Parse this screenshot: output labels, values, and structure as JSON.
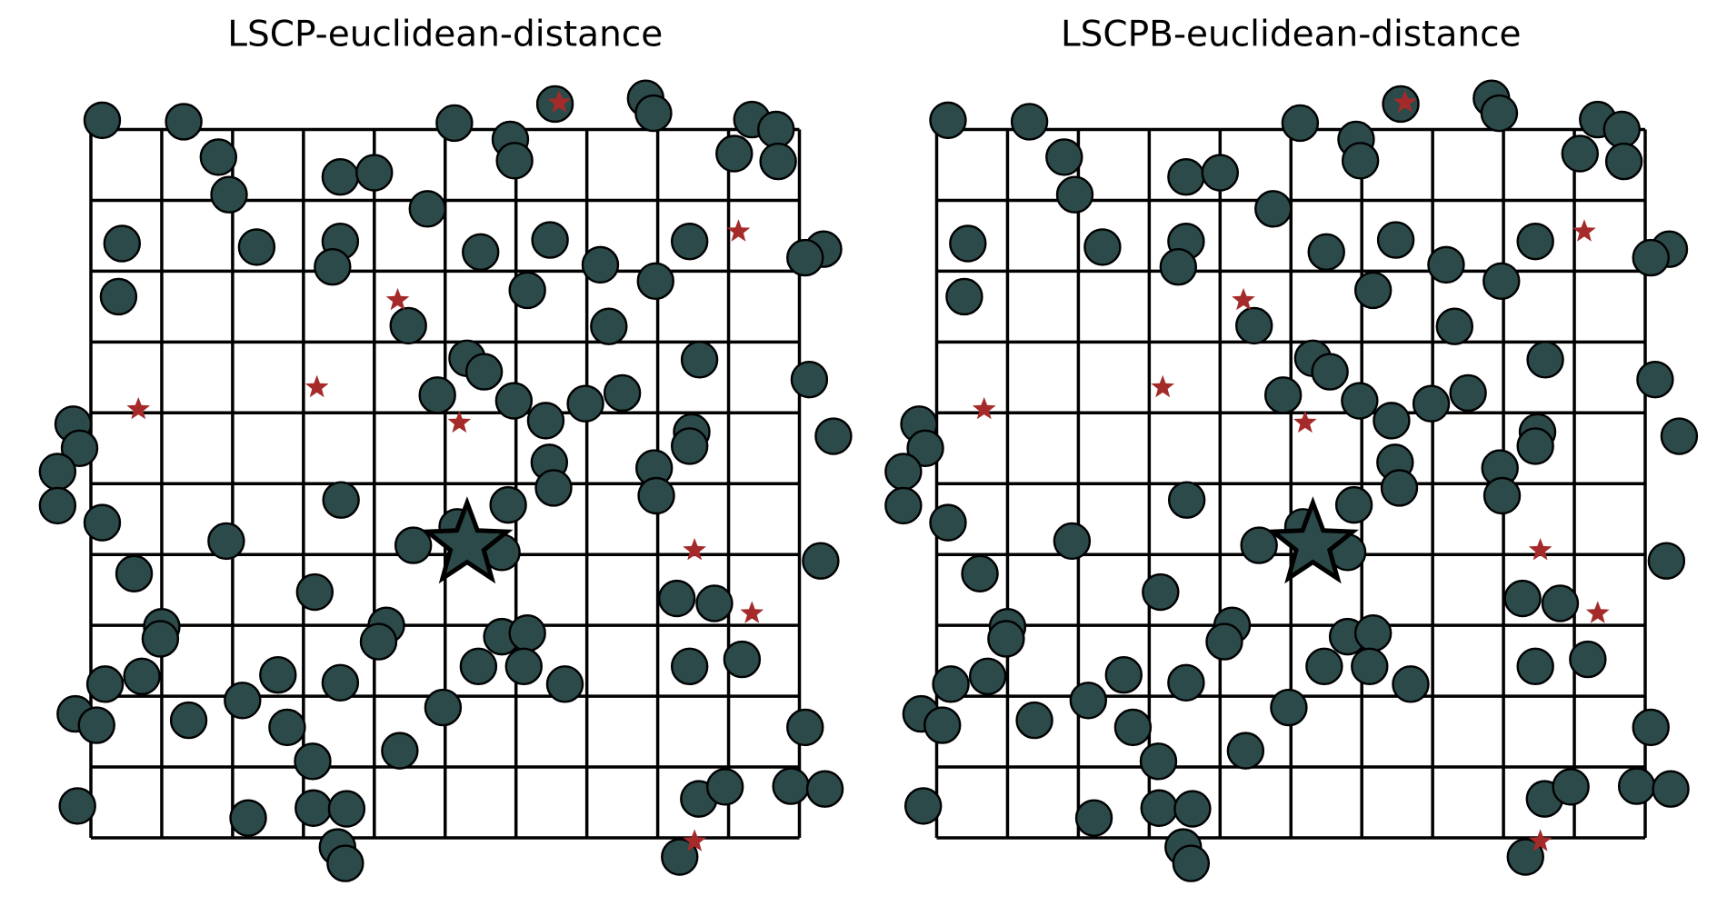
{
  "chart_data": [
    {
      "type": "scatter",
      "title": "LSCP-euclidean-distance",
      "xlim": [
        0,
        10
      ],
      "ylim": [
        0,
        10
      ],
      "xticks": [
        0,
        1,
        2,
        3,
        4,
        5,
        6,
        7,
        8,
        9,
        10
      ],
      "yticks": [
        0,
        1,
        2,
        3,
        4,
        5,
        6,
        7,
        8,
        9,
        10
      ],
      "grid": true,
      "tick_labels": false,
      "series": [
        {
          "color": "#2c4a4a",
          "marker": "circle",
          "x": [
            0.16,
            1.31,
            1.8,
            1.95,
            3.52,
            4.0,
            5.13,
            5.92,
            5.98,
            6.55,
            7.83,
            7.94,
            9.33,
            9.67,
            9.08,
            9.7,
            0.44,
            2.34,
            3.52,
            3.41,
            4.75,
            5.5,
            6.48,
            7.19,
            8.45,
            10.34,
            10.08,
            0.39,
            6.16,
            7.97,
            4.48,
            7.31,
            5.31,
            5.55,
            8.59,
            10.14,
            4.89,
            5.97,
            6.98,
            7.5,
            6.42,
            -0.25,
            -0.16,
            -0.47,
            -0.47,
            8.48,
            8.45,
            10.48,
            6.47,
            6.53,
            7.95,
            7.98,
            3.53,
            5.89,
            5.17,
            0.16,
            1.91,
            4.55,
            5.8,
            10.3,
            0.61,
            3.16,
            8.27,
            8.8,
            4.17,
            4.06,
            1.0,
            0.98,
            5.8,
            6.16,
            5.47,
            6.11,
            6.69,
            8.45,
            9.19,
            0.2,
            0.72,
            2.64,
            3.52,
            -0.22,
            0.08,
            1.38,
            2.14,
            2.77,
            4.97,
            10.08,
            3.13,
            4.36,
            -0.19,
            2.22,
            3.14,
            3.61,
            3.48,
            3.59,
            8.58,
            8.95,
            9.88,
            10.36,
            8.31
          ],
          "values": [
            10.13,
            10.11,
            9.61,
            9.08,
            9.33,
            9.39,
            10.09,
            9.86,
            9.56,
            10.36,
            10.44,
            10.23,
            10.14,
            10.0,
            9.66,
            9.55,
            8.39,
            8.34,
            8.42,
            8.06,
            8.88,
            8.27,
            8.44,
            8.09,
            8.42,
            8.31,
            8.19,
            7.64,
            7.73,
            7.86,
            7.23,
            7.22,
            6.77,
            6.58,
            6.75,
            6.47,
            6.25,
            6.17,
            6.13,
            6.28,
            5.89,
            5.84,
            5.5,
            5.17,
            4.69,
            5.73,
            5.53,
            5.67,
            5.3,
            4.94,
            5.22,
            4.83,
            4.77,
            4.7,
            4.39,
            4.45,
            4.19,
            4.13,
            4.03,
            3.91,
            3.73,
            3.47,
            3.38,
            3.31,
            3.0,
            2.77,
            2.98,
            2.81,
            2.84,
            2.89,
            2.42,
            2.42,
            2.17,
            2.42,
            2.52,
            2.17,
            2.28,
            2.3,
            2.19,
            1.75,
            1.59,
            1.66,
            1.94,
            1.56,
            1.84,
            1.56,
            1.08,
            1.23,
            0.45,
            0.28,
            0.42,
            0.41,
            -0.13,
            -0.36,
            0.55,
            0.72,
            0.73,
            0.69,
            -0.27
          ]
        },
        {
          "color": "#a52a2a",
          "marker": "star",
          "x": [
            6.61,
            9.14,
            4.33,
            3.19,
            0.67,
            5.2,
            8.52,
            9.33,
            8.52
          ],
          "values": [
            10.38,
            8.56,
            7.59,
            6.36,
            6.05,
            5.86,
            4.06,
            3.17,
            -0.05
          ]
        },
        {
          "color": "#2c4a4a",
          "marker": "big-star",
          "x": [
            5.31
          ],
          "values": [
            4.14
          ]
        }
      ]
    },
    {
      "type": "scatter",
      "title": "LSCPB-euclidean-distance",
      "xlim": [
        0,
        10
      ],
      "ylim": [
        0,
        10
      ],
      "xticks": [
        0,
        1,
        2,
        3,
        4,
        5,
        6,
        7,
        8,
        9,
        10
      ],
      "yticks": [
        0,
        1,
        2,
        3,
        4,
        5,
        6,
        7,
        8,
        9,
        10
      ],
      "grid": true,
      "tick_labels": false,
      "series": [
        {
          "color": "#2c4a4a",
          "marker": "circle",
          "x": [
            0.16,
            1.31,
            1.8,
            1.95,
            3.52,
            4.0,
            5.13,
            5.92,
            5.98,
            6.55,
            7.83,
            7.94,
            9.33,
            9.67,
            9.08,
            9.7,
            0.44,
            2.34,
            3.52,
            3.41,
            4.75,
            5.5,
            6.48,
            7.19,
            8.45,
            10.34,
            10.08,
            0.39,
            6.16,
            7.97,
            4.48,
            7.31,
            5.31,
            5.55,
            8.59,
            10.14,
            4.89,
            5.97,
            6.98,
            7.5,
            6.42,
            -0.25,
            -0.16,
            -0.47,
            -0.47,
            8.48,
            8.45,
            10.48,
            6.47,
            6.53,
            7.95,
            7.98,
            3.53,
            5.89,
            5.17,
            0.16,
            1.91,
            4.55,
            5.8,
            10.3,
            0.61,
            3.16,
            8.27,
            8.8,
            4.17,
            4.06,
            1.0,
            0.98,
            5.8,
            6.16,
            5.47,
            6.11,
            6.69,
            8.45,
            9.19,
            0.2,
            0.72,
            2.64,
            3.52,
            -0.22,
            0.08,
            1.38,
            2.14,
            2.77,
            4.97,
            10.08,
            3.13,
            4.36,
            -0.19,
            2.22,
            3.14,
            3.61,
            3.48,
            3.59,
            8.58,
            8.95,
            9.88,
            10.36,
            8.31
          ],
          "values": [
            10.13,
            10.11,
            9.61,
            9.08,
            9.33,
            9.39,
            10.09,
            9.86,
            9.56,
            10.36,
            10.44,
            10.23,
            10.14,
            10.0,
            9.66,
            9.55,
            8.39,
            8.34,
            8.42,
            8.06,
            8.88,
            8.27,
            8.44,
            8.09,
            8.42,
            8.31,
            8.19,
            7.64,
            7.73,
            7.86,
            7.23,
            7.22,
            6.77,
            6.58,
            6.75,
            6.47,
            6.25,
            6.17,
            6.13,
            6.28,
            5.89,
            5.84,
            5.5,
            5.17,
            4.69,
            5.73,
            5.53,
            5.67,
            5.3,
            4.94,
            5.22,
            4.83,
            4.77,
            4.7,
            4.39,
            4.45,
            4.19,
            4.13,
            4.03,
            3.91,
            3.73,
            3.47,
            3.38,
            3.31,
            3.0,
            2.77,
            2.98,
            2.81,
            2.84,
            2.89,
            2.42,
            2.42,
            2.17,
            2.42,
            2.52,
            2.17,
            2.28,
            2.3,
            2.19,
            1.75,
            1.59,
            1.66,
            1.94,
            1.56,
            1.84,
            1.56,
            1.08,
            1.23,
            0.45,
            0.28,
            0.42,
            0.41,
            -0.13,
            -0.36,
            0.55,
            0.72,
            0.73,
            0.69,
            -0.27
          ]
        },
        {
          "color": "#a52a2a",
          "marker": "star",
          "x": [
            6.61,
            9.14,
            4.33,
            3.19,
            0.67,
            5.2,
            8.52,
            9.33,
            8.52
          ],
          "values": [
            10.38,
            8.56,
            7.59,
            6.36,
            6.05,
            5.86,
            4.06,
            3.17,
            -0.05
          ]
        },
        {
          "color": "#2c4a4a",
          "marker": "big-star",
          "x": [
            5.31
          ],
          "values": [
            4.14
          ]
        }
      ]
    }
  ]
}
